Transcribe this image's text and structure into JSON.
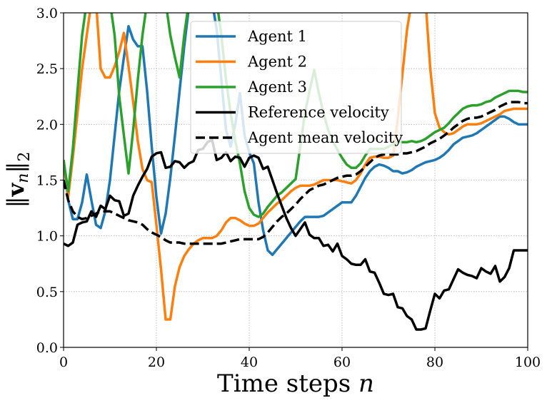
{
  "chart_data": {
    "type": "line",
    "xlabel": "Time steps n",
    "ylabel": "‖v_n‖₂",
    "xlim": [
      0,
      100
    ],
    "ylim": [
      0,
      3.0
    ],
    "grid": true,
    "legend_position": "top-center",
    "x_ticks": [
      {
        "value": 0,
        "label": "0"
      },
      {
        "value": 20,
        "label": "20"
      },
      {
        "value": 40,
        "label": "40"
      },
      {
        "value": 60,
        "label": "60"
      },
      {
        "value": 80,
        "label": "80"
      },
      {
        "value": 100,
        "label": "100"
      }
    ],
    "y_ticks": [
      {
        "value": 0.0,
        "label": "0.0"
      },
      {
        "value": 0.5,
        "label": "0.5"
      },
      {
        "value": 1.0,
        "label": "1.0"
      },
      {
        "value": 1.5,
        "label": "1.5"
      },
      {
        "value": 2.0,
        "label": "2.0"
      },
      {
        "value": 2.5,
        "label": "2.5"
      },
      {
        "value": 3.0,
        "label": "3.0"
      }
    ],
    "x": [
      0,
      1,
      2,
      3,
      4,
      5,
      6,
      7,
      8,
      9,
      10,
      11,
      12,
      13,
      14,
      15,
      16,
      17,
      18,
      19,
      20,
      21,
      22,
      23,
      24,
      25,
      26,
      27,
      28,
      29,
      30,
      31,
      32,
      33,
      34,
      35,
      36,
      37,
      38,
      39,
      40,
      41,
      42,
      43,
      44,
      45,
      46,
      47,
      48,
      49,
      50,
      51,
      52,
      53,
      54,
      55,
      56,
      57,
      58,
      59,
      60,
      61,
      62,
      63,
      64,
      65,
      66,
      67,
      68,
      69,
      70,
      71,
      72,
      73,
      74,
      75,
      76,
      77,
      78,
      79,
      80,
      81,
      82,
      83,
      84,
      85,
      86,
      87,
      88,
      89,
      90,
      91,
      92,
      93,
      94,
      95,
      96,
      97,
      98,
      99,
      100
    ],
    "series": [
      {
        "name": "Agent 1",
        "color": "#1f77b4",
        "dash": "solid",
        "values": [
          1.68,
          1.32,
          1.15,
          1.15,
          1.3,
          1.55,
          1.32,
          1.1,
          1.07,
          1.22,
          1.5,
          1.9,
          2.3,
          2.6,
          2.88,
          2.76,
          2.7,
          2.7,
          2.3,
          1.8,
          1.35,
          1.02,
          1.2,
          1.52,
          1.9,
          2.3,
          2.7,
          3.05,
          3.1,
          3.1,
          3.1,
          3.1,
          3.1,
          2.85,
          2.4,
          1.95,
          1.8,
          2.0,
          2.28,
          1.9,
          1.75,
          1.65,
          1.3,
          1.05,
          0.87,
          0.83,
          0.88,
          0.93,
          0.98,
          1.03,
          1.08,
          1.13,
          1.17,
          1.17,
          1.17,
          1.17,
          1.18,
          1.21,
          1.24,
          1.27,
          1.3,
          1.3,
          1.3,
          1.36,
          1.44,
          1.52,
          1.58,
          1.62,
          1.64,
          1.63,
          1.61,
          1.58,
          1.58,
          1.56,
          1.57,
          1.59,
          1.62,
          1.64,
          1.66,
          1.67,
          1.68,
          1.7,
          1.73,
          1.77,
          1.82,
          1.85,
          1.88,
          1.89,
          1.9,
          1.92,
          1.95,
          1.98,
          2.01,
          2.04,
          2.07,
          2.07,
          2.05,
          2.02,
          2.0,
          2.0,
          2.0
        ]
      },
      {
        "name": "Agent 2",
        "color": "#ff7f0e",
        "dash": "solid",
        "values": [
          1.68,
          1.35,
          1.7,
          2.1,
          2.5,
          2.8,
          3.1,
          3.1,
          2.5,
          2.42,
          2.42,
          2.52,
          2.65,
          2.82,
          2.52,
          2.2,
          1.85,
          1.6,
          1.5,
          1.48,
          1.1,
          0.7,
          0.25,
          0.25,
          0.55,
          0.72,
          0.82,
          0.88,
          0.93,
          0.96,
          0.98,
          0.98,
          0.98,
          1.0,
          1.05,
          1.12,
          1.16,
          1.16,
          1.14,
          1.11,
          1.09,
          1.09,
          1.11,
          1.16,
          1.21,
          1.25,
          1.29,
          1.32,
          1.36,
          1.4,
          1.43,
          1.45,
          1.45,
          1.45,
          1.46,
          1.48,
          1.5,
          1.5,
          1.5,
          1.5,
          1.49,
          1.48,
          1.47,
          1.5,
          1.56,
          1.64,
          1.7,
          1.71,
          1.71,
          1.7,
          1.7,
          1.72,
          2.05,
          2.45,
          2.85,
          3.1,
          3.1,
          3.1,
          3.1,
          2.5,
          2.1,
          1.97,
          1.93,
          1.91,
          1.92,
          1.95,
          1.98,
          2.0,
          2.0,
          2.0,
          2.01,
          2.03,
          2.05,
          2.07,
          2.09,
          2.12,
          2.13,
          2.14,
          2.14,
          2.14,
          2.14
        ]
      },
      {
        "name": "Agent 3",
        "color": "#2ca02c",
        "dash": "solid",
        "values": [
          1.68,
          1.4,
          1.78,
          2.3,
          2.8,
          3.1,
          3.1,
          3.1,
          3.1,
          3.1,
          3.1,
          2.8,
          2.25,
          1.9,
          1.56,
          1.95,
          2.4,
          2.8,
          3.1,
          3.1,
          3.1,
          3.1,
          3.1,
          2.8,
          2.6,
          2.42,
          2.8,
          3.1,
          3.1,
          3.1,
          3.1,
          3.1,
          3.1,
          3.1,
          2.8,
          2.4,
          2.1,
          1.85,
          1.65,
          1.4,
          1.25,
          1.19,
          1.17,
          1.2,
          1.26,
          1.31,
          1.36,
          1.39,
          1.43,
          1.47,
          1.51,
          1.8,
          2.1,
          2.3,
          2.49,
          2.28,
          2.1,
          1.95,
          1.85,
          1.77,
          1.7,
          1.64,
          1.61,
          1.61,
          1.65,
          1.72,
          1.78,
          1.78,
          1.78,
          1.78,
          1.8,
          1.82,
          1.84,
          1.84,
          1.84,
          1.85,
          1.84,
          1.85,
          1.87,
          1.9,
          1.93,
          1.95,
          1.97,
          2.01,
          2.06,
          2.1,
          2.14,
          2.16,
          2.17,
          2.17,
          2.18,
          2.2,
          2.21,
          2.24,
          2.26,
          2.28,
          2.3,
          2.3,
          2.3,
          2.29,
          2.29
        ]
      },
      {
        "name": "Reference velocity",
        "color": "#000000",
        "dash": "solid",
        "values": [
          0.93,
          0.91,
          0.94,
          1.1,
          1.12,
          1.13,
          1.22,
          1.17,
          1.27,
          1.24,
          1.36,
          1.32,
          1.31,
          1.18,
          1.2,
          1.36,
          1.45,
          1.53,
          1.6,
          1.71,
          1.74,
          1.75,
          1.61,
          1.62,
          1.67,
          1.66,
          1.61,
          1.65,
          1.67,
          1.77,
          1.78,
          1.84,
          1.86,
          1.68,
          1.7,
          1.75,
          1.67,
          1.71,
          1.7,
          1.62,
          1.7,
          1.72,
          1.7,
          1.6,
          1.62,
          1.5,
          1.38,
          1.27,
          1.16,
          1.07,
          1.0,
          1.06,
          1.12,
          1.01,
          0.98,
          0.98,
          0.91,
          0.92,
          0.86,
          0.93,
          0.82,
          0.79,
          0.75,
          0.74,
          0.74,
          0.79,
          0.68,
          0.67,
          0.58,
          0.48,
          0.47,
          0.48,
          0.36,
          0.35,
          0.28,
          0.25,
          0.16,
          0.16,
          0.17,
          0.33,
          0.48,
          0.44,
          0.51,
          0.52,
          0.61,
          0.7,
          0.67,
          0.65,
          0.64,
          0.62,
          0.71,
          0.68,
          0.66,
          0.73,
          0.59,
          0.63,
          0.71,
          0.87,
          0.87,
          0.87,
          0.87
        ]
      },
      {
        "name": "Agent mean velocity",
        "color": "#000000",
        "dash": "dashed",
        "values": [
          1.5,
          1.32,
          1.22,
          1.17,
          1.15,
          1.16,
          1.18,
          1.2,
          1.22,
          1.22,
          1.22,
          1.2,
          1.18,
          1.16,
          1.14,
          1.13,
          1.12,
          1.1,
          1.06,
          1.03,
          1.01,
          0.99,
          0.96,
          0.94,
          0.94,
          0.94,
          0.93,
          0.93,
          0.93,
          0.93,
          0.93,
          0.93,
          0.93,
          0.93,
          0.93,
          0.94,
          0.95,
          0.96,
          0.97,
          0.97,
          0.97,
          0.97,
          0.97,
          0.99,
          1.03,
          1.08,
          1.13,
          1.17,
          1.2,
          1.24,
          1.28,
          1.33,
          1.37,
          1.41,
          1.43,
          1.45,
          1.46,
          1.48,
          1.5,
          1.52,
          1.53,
          1.54,
          1.54,
          1.55,
          1.58,
          1.62,
          1.66,
          1.7,
          1.72,
          1.73,
          1.73,
          1.73,
          1.73,
          1.74,
          1.74,
          1.75,
          1.76,
          1.78,
          1.8,
          1.83,
          1.85,
          1.87,
          1.9,
          1.93,
          1.97,
          2.0,
          2.03,
          2.05,
          2.06,
          2.06,
          2.07,
          2.09,
          2.11,
          2.13,
          2.16,
          2.18,
          2.2,
          2.2,
          2.2,
          2.19,
          2.19
        ]
      }
    ]
  }
}
